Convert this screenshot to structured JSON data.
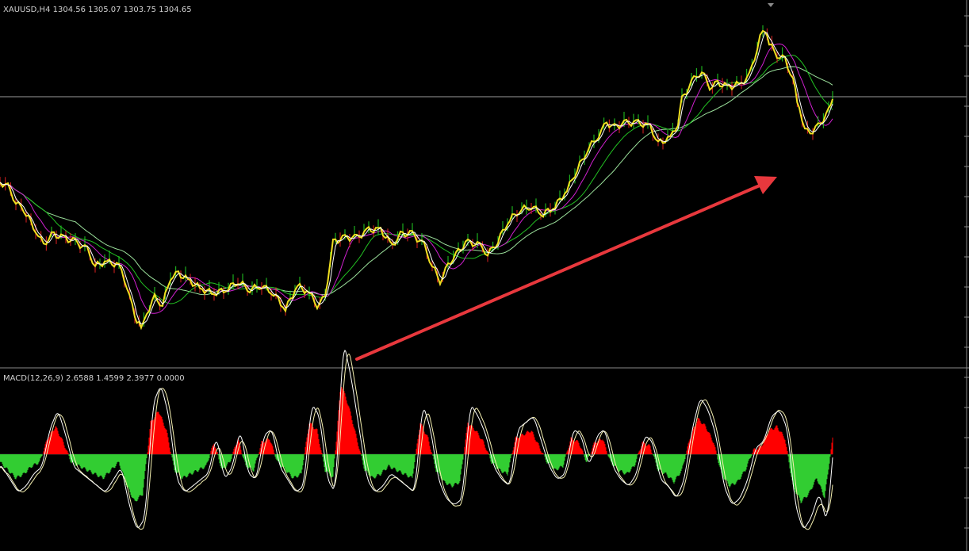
{
  "header": {
    "symbol_info": "XAUUSD,H4  1304.56 1305.07 1303.75 1304.65"
  },
  "indicator": {
    "label": "MACD(12,26,9) 2.6588 1.4599 2.3977 0.0000"
  }
}
